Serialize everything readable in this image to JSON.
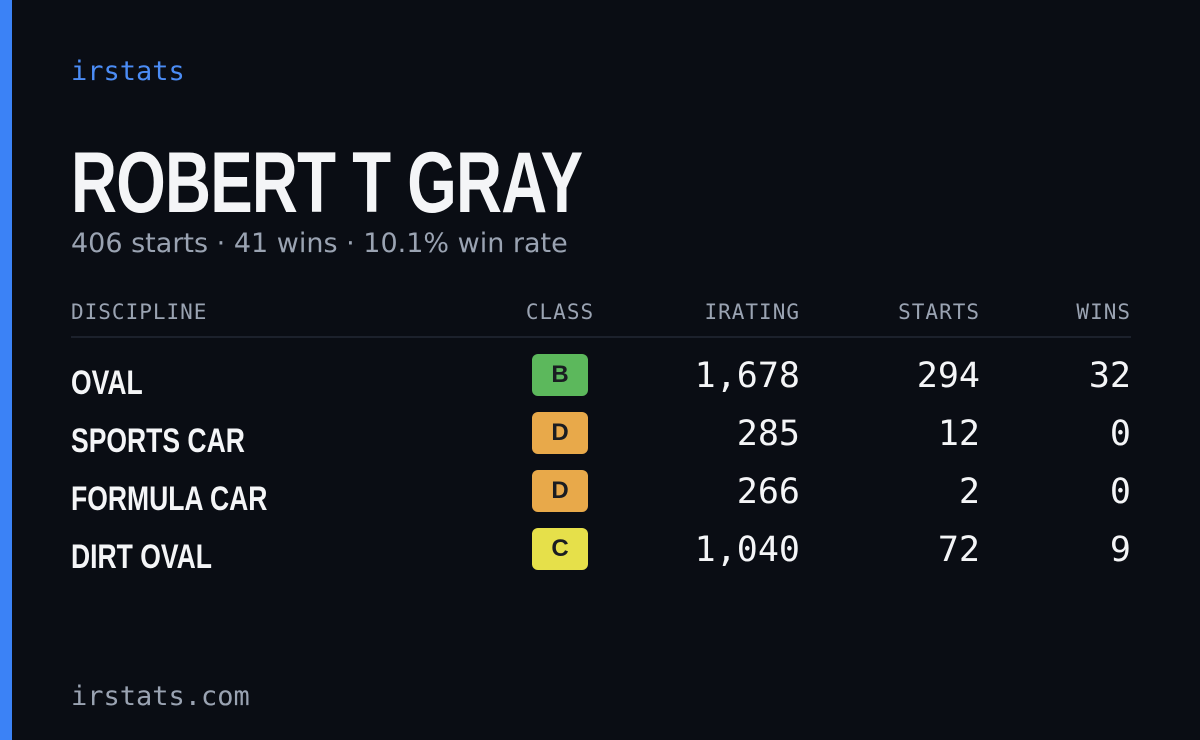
{
  "brand": "irstats",
  "driver": {
    "name": "ROBERT T GRAY",
    "summary": "406 starts · 41 wins · 10.1% win rate"
  },
  "table": {
    "headers": [
      "DISCIPLINE",
      "CLASS",
      "IRATING",
      "STARTS",
      "WINS"
    ],
    "rows": [
      {
        "discipline": "OVAL",
        "class": "B",
        "class_color": "#5cb85c",
        "irating": "1,678",
        "starts": "294",
        "wins": "32"
      },
      {
        "discipline": "SPORTS CAR",
        "class": "D",
        "class_color": "#e8a94a",
        "irating": "285",
        "starts": "12",
        "wins": "0"
      },
      {
        "discipline": "FORMULA CAR",
        "class": "D",
        "class_color": "#e8a94a",
        "irating": "266",
        "starts": "2",
        "wins": "0"
      },
      {
        "discipline": "DIRT OVAL",
        "class": "C",
        "class_color": "#e6e04a",
        "irating": "1,040",
        "starts": "72",
        "wins": "9"
      }
    ]
  },
  "footer": "irstats.com"
}
